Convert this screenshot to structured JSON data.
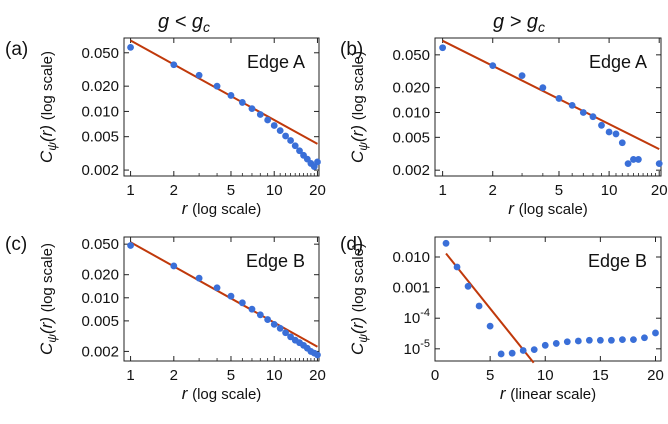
{
  "headers": {
    "left": "g < g",
    "left_sub": "c",
    "right": "g > g",
    "right_sub": "c"
  },
  "colors": {
    "points": "#3a6fd8",
    "fit": "#c0390b",
    "axis": "#222222"
  },
  "axis_text": {
    "y_sym": "C",
    "y_sub": "ψ",
    "y_arg": "(r)",
    "y_scale": "(log scale)",
    "x_sym": "r",
    "x_scale_log": "(log scale)",
    "x_scale_lin": "(linear scale)"
  },
  "chart_data": [
    {
      "panel_label": "(a)",
      "inset_label": "Edge A",
      "type": "scatter",
      "xscale": "log",
      "yscale": "log",
      "xlim": [
        0.9,
        20.5
      ],
      "ylim": [
        0.0017,
        0.075
      ],
      "xticks": [
        [
          1,
          "1"
        ],
        [
          2,
          "2"
        ],
        [
          5,
          "5"
        ],
        [
          10,
          "10"
        ],
        [
          20,
          "20"
        ]
      ],
      "yticks": [
        [
          0.05,
          "0.050"
        ],
        [
          0.02,
          "0.020"
        ],
        [
          0.01,
          "0.010"
        ],
        [
          0.005,
          "0.005"
        ],
        [
          0.002,
          "0.002"
        ]
      ],
      "points": [
        [
          1,
          0.058
        ],
        [
          2,
          0.036
        ],
        [
          3,
          0.027
        ],
        [
          4,
          0.02
        ],
        [
          5,
          0.0155
        ],
        [
          6,
          0.0128
        ],
        [
          7,
          0.0108
        ],
        [
          8,
          0.0092
        ],
        [
          9,
          0.0079
        ],
        [
          10,
          0.0068
        ],
        [
          11,
          0.0059
        ],
        [
          12,
          0.0051
        ],
        [
          13,
          0.0045
        ],
        [
          14,
          0.0039
        ],
        [
          15,
          0.0034
        ],
        [
          16,
          0.003
        ],
        [
          17,
          0.0027
        ],
        [
          18,
          0.0024
        ],
        [
          19,
          0.0022
        ],
        [
          20,
          0.0025
        ]
      ],
      "fit": [
        [
          1,
          0.07
        ],
        [
          20,
          0.0041
        ]
      ],
      "show_xlabel": true
    },
    {
      "panel_label": "(b)",
      "inset_label": "Edge A",
      "type": "scatter",
      "xscale": "log",
      "yscale": "log",
      "xlim": [
        0.9,
        20.5
      ],
      "ylim": [
        0.0017,
        0.08
      ],
      "xticks": [
        [
          1,
          "1"
        ],
        [
          2,
          "2"
        ],
        [
          5,
          "5"
        ],
        [
          10,
          "10"
        ],
        [
          20,
          "20"
        ]
      ],
      "yticks": [
        [
          0.05,
          "0.050"
        ],
        [
          0.02,
          "0.020"
        ],
        [
          0.01,
          "0.010"
        ],
        [
          0.005,
          "0.005"
        ],
        [
          0.002,
          "0.002"
        ]
      ],
      "points": [
        [
          1,
          0.061
        ],
        [
          2,
          0.037
        ],
        [
          3,
          0.028
        ],
        [
          4,
          0.02
        ],
        [
          5,
          0.0148
        ],
        [
          6,
          0.0122
        ],
        [
          7,
          0.01
        ],
        [
          8,
          0.0089
        ],
        [
          9,
          0.007
        ],
        [
          10,
          0.0058
        ],
        [
          11,
          0.0055
        ],
        [
          12,
          0.0043
        ],
        [
          13,
          0.0024
        ],
        [
          14,
          0.0027
        ],
        [
          15,
          0.0027
        ],
        [
          20,
          0.0024
        ]
      ],
      "fit": [
        [
          1,
          0.074
        ],
        [
          20,
          0.0036
        ]
      ],
      "show_xlabel": true
    },
    {
      "panel_label": "(c)",
      "inset_label": "Edge B",
      "type": "scatter",
      "xscale": "log",
      "yscale": "log",
      "xlim": [
        0.9,
        20.5
      ],
      "ylim": [
        0.0015,
        0.062
      ],
      "xticks": [
        [
          1,
          "1"
        ],
        [
          2,
          "2"
        ],
        [
          5,
          "5"
        ],
        [
          10,
          "10"
        ],
        [
          20,
          "20"
        ]
      ],
      "yticks": [
        [
          0.05,
          "0.050"
        ],
        [
          0.02,
          "0.020"
        ],
        [
          0.01,
          "0.010"
        ],
        [
          0.005,
          "0.005"
        ],
        [
          0.002,
          "0.002"
        ]
      ],
      "points": [
        [
          1,
          0.048
        ],
        [
          2,
          0.026
        ],
        [
          3,
          0.018
        ],
        [
          4,
          0.0135
        ],
        [
          5,
          0.0105
        ],
        [
          6,
          0.0086
        ],
        [
          7,
          0.0071
        ],
        [
          8,
          0.006
        ],
        [
          9,
          0.0052
        ],
        [
          10,
          0.0045
        ],
        [
          11,
          0.004
        ],
        [
          12,
          0.0035
        ],
        [
          13,
          0.0031
        ],
        [
          14,
          0.0028
        ],
        [
          15,
          0.0026
        ],
        [
          16,
          0.0024
        ],
        [
          17,
          0.0022
        ],
        [
          18,
          0.002
        ],
        [
          19,
          0.0019
        ],
        [
          20,
          0.0018
        ]
      ],
      "fit": [
        [
          1,
          0.053
        ],
        [
          20,
          0.0023
        ]
      ],
      "show_xlabel": true
    },
    {
      "panel_label": "(d)",
      "inset_label": "Edge B",
      "type": "scatter",
      "xscale": "linear",
      "yscale": "log",
      "xlim": [
        0,
        20.5
      ],
      "ylim": [
        4e-06,
        0.045
      ],
      "xticks": [
        [
          0,
          "0"
        ],
        [
          5,
          "5"
        ],
        [
          10,
          "10"
        ],
        [
          15,
          "15"
        ],
        [
          20,
          "20"
        ]
      ],
      "yticks": [
        [
          0.01,
          "0.010"
        ],
        [
          0.001,
          "0.001"
        ],
        [
          0.0001,
          "10^-4"
        ],
        [
          1e-05,
          "10^-5"
        ]
      ],
      "points": [
        [
          1,
          0.028
        ],
        [
          2,
          0.0047
        ],
        [
          3,
          0.0011
        ],
        [
          4,
          0.00025
        ],
        [
          5,
          5.5e-05
        ],
        [
          6,
          6.8e-06
        ],
        [
          7,
          7.2e-06
        ],
        [
          8,
          8.8e-06
        ],
        [
          9,
          9.4e-06
        ],
        [
          10,
          1.3e-05
        ],
        [
          11,
          1.5e-05
        ],
        [
          12,
          1.7e-05
        ],
        [
          13,
          1.8e-05
        ],
        [
          14,
          1.9e-05
        ],
        [
          15,
          1.9e-05
        ],
        [
          16,
          1.9e-05
        ],
        [
          17,
          2e-05
        ],
        [
          18,
          2e-05
        ],
        [
          19,
          2.3e-05
        ],
        [
          20,
          3.3e-05
        ]
      ],
      "fit": [
        [
          1,
          0.013
        ],
        [
          8.95,
          3.5e-06
        ]
      ],
      "show_xlabel": true
    }
  ]
}
